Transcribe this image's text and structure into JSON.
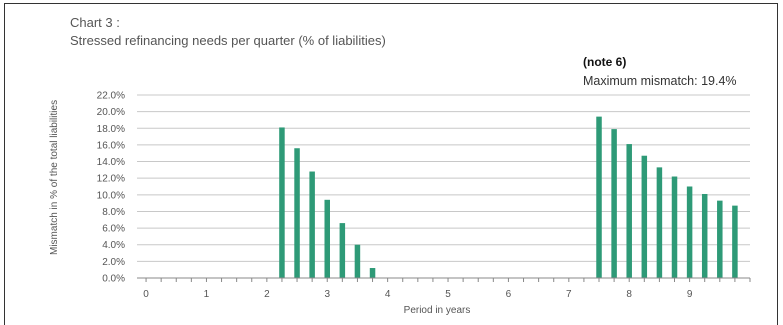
{
  "chart_data": {
    "type": "bar",
    "title_lines": [
      "Chart 3 :",
      "Stressed refinancing needs per quarter  (% of liabilities)"
    ],
    "note": "(note 6)",
    "annotation": "Maximum mismatch: 19.4%",
    "xlabel": "Period in years",
    "ylabel": "Mismatch in % of the total liabilities",
    "ylim": [
      0,
      22
    ],
    "yticks": [
      0,
      2,
      4,
      6,
      8,
      10,
      12,
      14,
      16,
      18,
      20,
      22
    ],
    "ytick_labels": [
      "0.0%",
      "2.0%",
      "4.0%",
      "6.0%",
      "8.0%",
      "10.0%",
      "12.0%",
      "14.0%",
      "16.0%",
      "18.0%",
      "20.0%",
      "22.0%"
    ],
    "xlim": [
      -0.15,
      10.0
    ],
    "xticks": [
      0,
      1,
      2,
      3,
      4,
      5,
      6,
      7,
      8,
      9
    ],
    "xtick_labels": [
      "0",
      "1",
      "2",
      "3",
      "4",
      "5",
      "6",
      "7",
      "8",
      "9"
    ],
    "grid": "horizontal",
    "bar_color": "#2e9a77",
    "x": [
      2.25,
      2.5,
      2.75,
      3.0,
      3.25,
      3.5,
      3.75,
      7.5,
      7.75,
      8.0,
      8.25,
      8.5,
      8.75,
      9.0,
      9.25,
      9.5,
      9.75
    ],
    "values": [
      18.1,
      15.6,
      12.8,
      9.4,
      6.6,
      4.0,
      1.2,
      19.4,
      17.9,
      16.1,
      14.7,
      13.3,
      12.2,
      11.0,
      10.1,
      9.3,
      8.7
    ]
  }
}
